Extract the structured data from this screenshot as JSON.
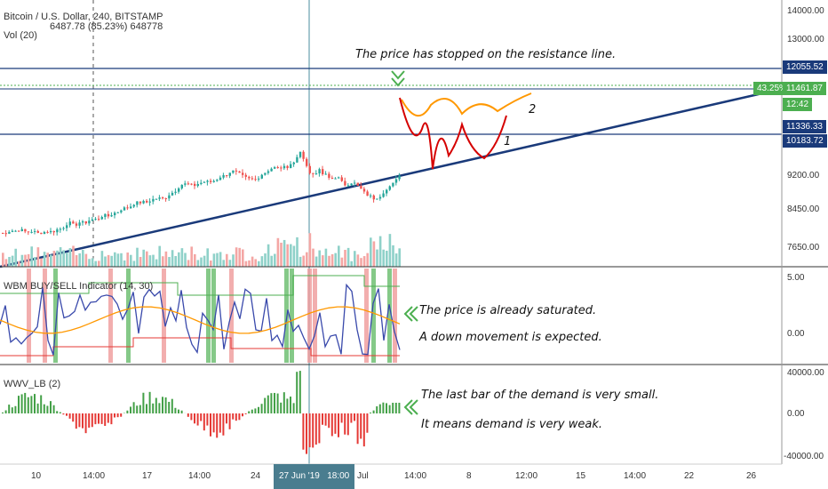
{
  "header": {
    "symbol_line": "Bitcoin / U.S. Dollar, 240, BITSTAMP",
    "ohlc_line": "6487.78 (85.23%) 648778",
    "vol_label": "Vol (20)"
  },
  "price_axis": [
    "14000.00",
    "13000.00",
    "12055.52",
    "11461.87",
    "11",
    "12:42",
    "11336.33",
    "10183.72",
    "9200.00",
    "8450.00",
    "7650.00"
  ],
  "price_tags": {
    "resistance": "12055.52",
    "pct": "43.25%",
    "current": "11461.87",
    "countdown": "12:42",
    "level2": "11336.33",
    "level1": "10183.72"
  },
  "indicator1": {
    "title": "WBM BUY/SELL Indicator (14, 30)",
    "axis": [
      "5.00",
      "0.00"
    ]
  },
  "indicator2": {
    "title": "WWV_LB (2)",
    "axis": [
      "40000.00",
      "0.00",
      "-40000.00"
    ]
  },
  "annotations": {
    "resistance_note": "The price has stopped on the resistance line.",
    "saturated": "The price is already saturated.",
    "down_move": "A down movement is expected.",
    "demand_small": "The last bar of the demand is very small.",
    "demand_weak": "It means demand is very weak.",
    "path1": "1",
    "path2": "2"
  },
  "time_axis": {
    "labels": [
      "10",
      "14:00",
      "17",
      "14:00",
      "24",
      "Jul",
      "14:00",
      "8",
      "12:00",
      "15",
      "14:00",
      "22",
      "26"
    ],
    "highlight_date": "27 Jun '19",
    "highlight_time": "18:00"
  },
  "colors": {
    "up": "#26a69a",
    "down": "#ef5350",
    "trend": "#1a3a7a",
    "accent_green": "#4caf50",
    "orange": "#ff9800",
    "red": "#d50000"
  }
}
